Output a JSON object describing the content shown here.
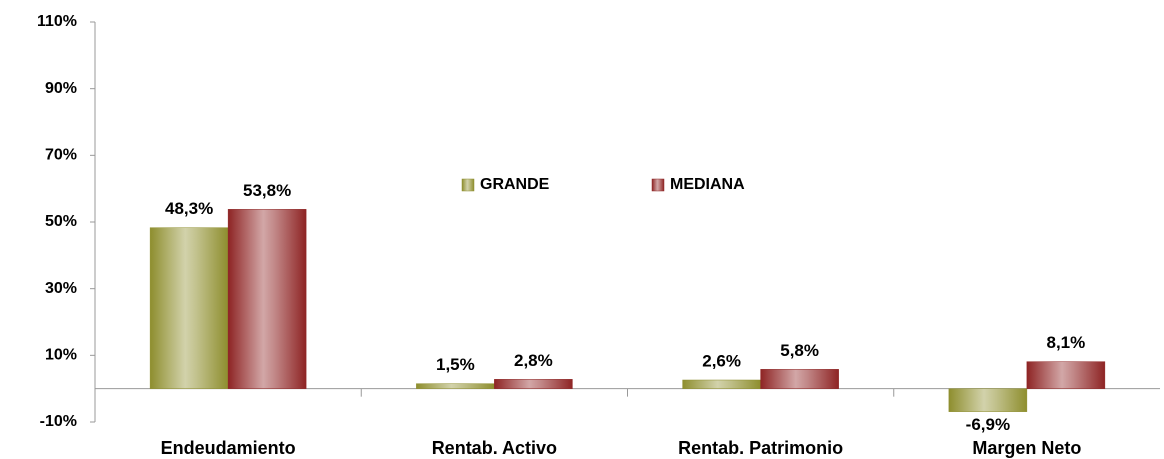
{
  "chart_data": {
    "type": "bar",
    "categories": [
      "Endeudamiento",
      "Rentab. Activo",
      "Rentab. Patrimonio",
      "Margen Neto"
    ],
    "series": [
      {
        "name": "GRANDE",
        "color": "#8e8e2e",
        "values": [
          48.3,
          1.5,
          2.6,
          -6.9
        ],
        "value_labels": [
          "48,3%",
          "1,5%",
          "2,6%",
          "-6,9%"
        ]
      },
      {
        "name": "MEDIANA",
        "color": "#8e2424",
        "values": [
          53.8,
          2.8,
          5.8,
          8.1
        ],
        "value_labels": [
          "53,8%",
          "2,8%",
          "5,8%",
          "8,1%"
        ]
      }
    ],
    "ylim": [
      -10,
      110
    ],
    "yticks": [
      {
        "value": -10,
        "label": "-10%"
      },
      {
        "value": 10,
        "label": "10%"
      },
      {
        "value": 30,
        "label": "30%"
      },
      {
        "value": 50,
        "label": "50%"
      },
      {
        "value": 70,
        "label": "70%"
      },
      {
        "value": 90,
        "label": "90%"
      },
      {
        "value": 110,
        "label": "110%"
      }
    ],
    "grid": false
  }
}
